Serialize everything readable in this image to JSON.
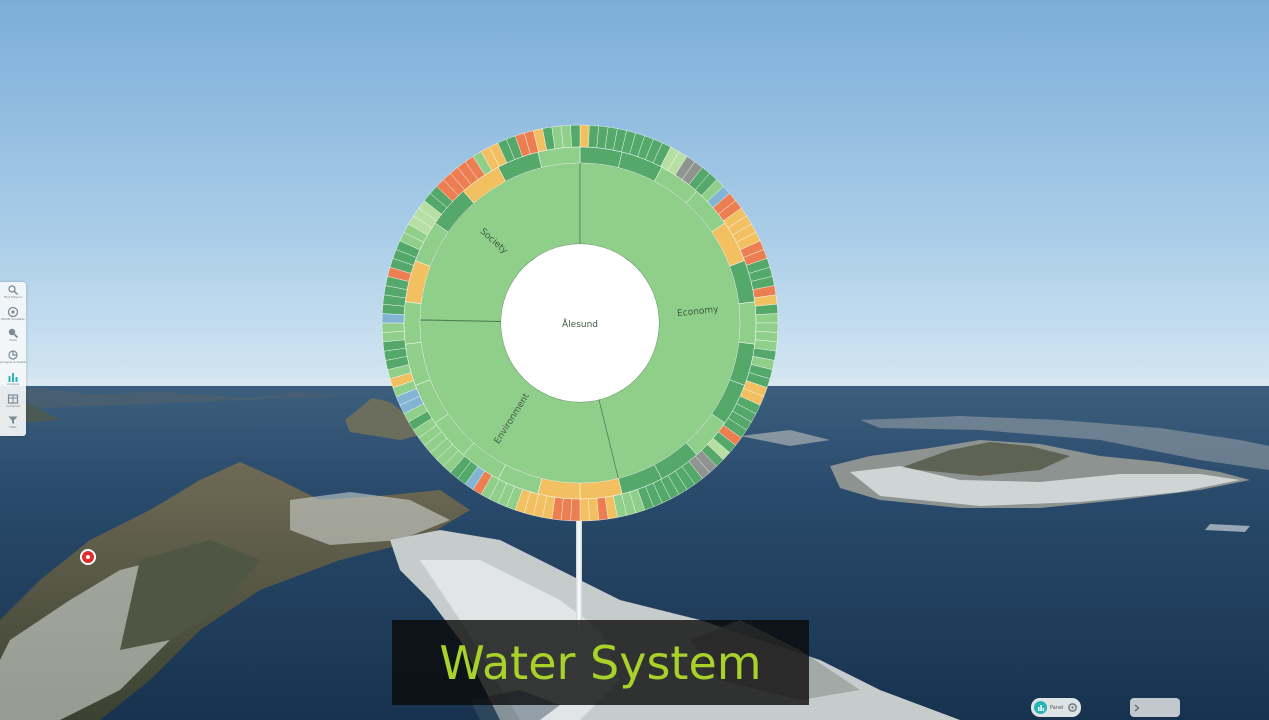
{
  "sidebar": {
    "items": [
      {
        "label": "Find Mayors",
        "icon": "search-icon"
      },
      {
        "label": "NGUR Variables",
        "icon": "settings-circle-icon"
      },
      {
        "label": "Tools",
        "icon": "magnifier-tool-icon"
      },
      {
        "label": "Analysis & Dashboard",
        "icon": "analysis-icon"
      },
      {
        "label": "Analysis",
        "icon": "bar-chart-icon"
      },
      {
        "label": "Compare",
        "icon": "table-icon"
      },
      {
        "label": "Filter",
        "icon": "filter-icon"
      }
    ]
  },
  "caption": {
    "text": "Water System"
  },
  "bottom_bar": {
    "pill_label": "Panel",
    "next_label": ""
  },
  "colors": {
    "good": "#8fcf8a",
    "strong": "#53a86a",
    "mid": "#b7dfa3",
    "warn": "#f2c060",
    "bad": "#ec7f52",
    "unknown": "#83b4d3",
    "missing": "#8f9490"
  },
  "chart_data": {
    "type": "sunburst",
    "center": "Ålesund",
    "categories": [
      "Society",
      "Economy",
      "Environment"
    ],
    "outer_ring_status": [
      "warn",
      "strong",
      "strong",
      "strong",
      "strong",
      "strong",
      "strong",
      "strong",
      "strong",
      "strong",
      "mid",
      "mid",
      "missing",
      "missing",
      "strong",
      "strong",
      "good",
      "unknown",
      "bad",
      "bad",
      "warn",
      "warn",
      "warn",
      "warn",
      "bad",
      "bad",
      "strong",
      "strong",
      "strong",
      "bad",
      "warn",
      "strong",
      "good",
      "good",
      "good",
      "good",
      "strong",
      "good",
      "strong",
      "strong",
      "warn",
      "warn",
      "strong",
      "strong",
      "strong",
      "strong",
      "bad",
      "strong",
      "mid",
      "strong",
      "missing",
      "missing",
      "strong",
      "strong",
      "strong",
      "strong",
      "strong",
      "strong",
      "strong",
      "good",
      "good",
      "good",
      "warn",
      "bad",
      "warn",
      "warn",
      "bad",
      "bad",
      "bad",
      "warn",
      "warn",
      "warn",
      "warn",
      "good",
      "good",
      "good",
      "good",
      "bad",
      "unknown",
      "strong",
      "strong",
      "good",
      "good",
      "good",
      "good",
      "good",
      "good",
      "strong",
      "good",
      "unknown",
      "unknown",
      "good",
      "warn",
      "good",
      "strong",
      "strong",
      "strong",
      "good",
      "good",
      "unknown",
      "strong",
      "strong",
      "strong",
      "strong",
      "bad",
      "strong",
      "strong",
      "strong",
      "good",
      "good",
      "mid",
      "mid",
      "mid",
      "strong",
      "strong",
      "bad",
      "bad",
      "bad",
      "bad",
      "bad",
      "good",
      "warn",
      "warn",
      "strong",
      "strong",
      "bad",
      "bad",
      "warn",
      "strong",
      "good",
      "good",
      "strong"
    ]
  }
}
